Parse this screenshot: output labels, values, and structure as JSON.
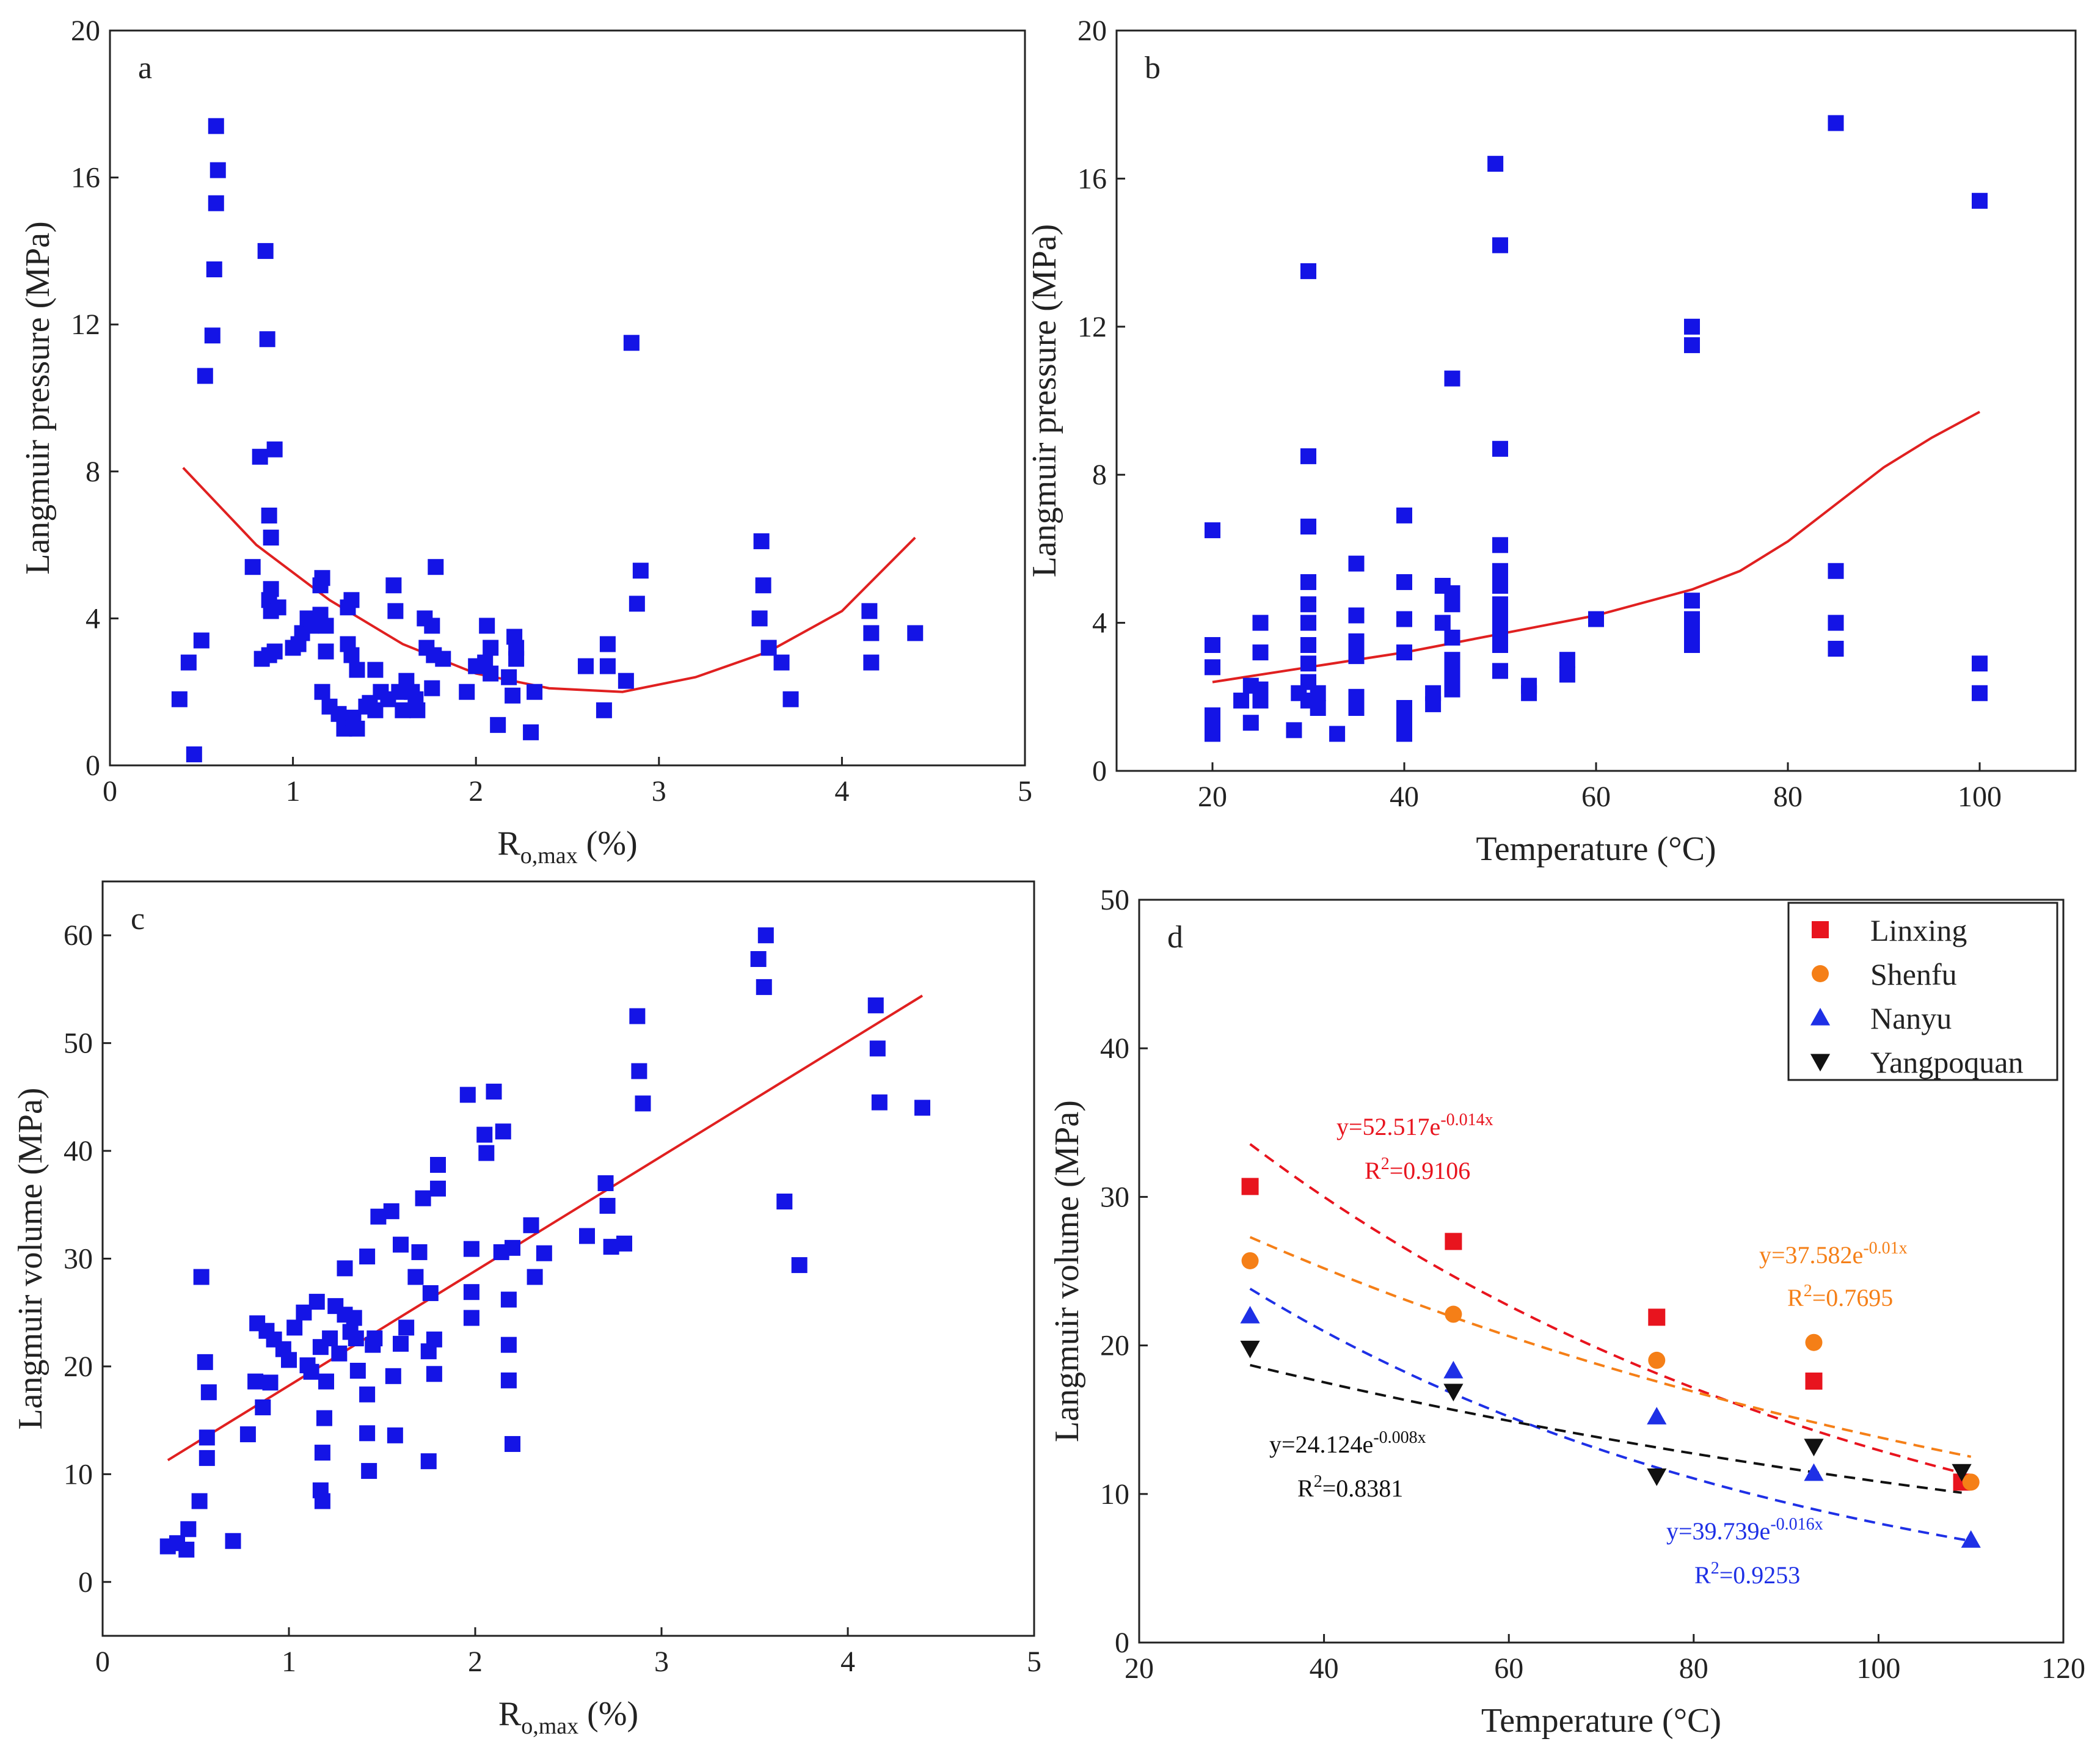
{
  "chart_data": [
    {
      "panel": "a",
      "type": "scatter",
      "xlabel_main": "R",
      "xlabel_sub": "o,max",
      "xlabel_unit": " (%)",
      "ylabel": "Langmuir pressure (MPa)",
      "xlim": [
        0,
        5
      ],
      "ylim": [
        0,
        20
      ],
      "xticks": [
        0,
        1,
        2,
        3,
        4,
        5
      ],
      "yticks": [
        0,
        4,
        8,
        12,
        16,
        20
      ],
      "marker": "square",
      "color": "#1414e6",
      "fit_color": "#e02020",
      "points": [
        [
          0.38,
          1.8
        ],
        [
          0.43,
          2.8
        ],
        [
          0.46,
          0.3
        ],
        [
          0.5,
          3.4
        ],
        [
          0.52,
          10.6
        ],
        [
          0.56,
          11.7
        ],
        [
          0.57,
          13.5
        ],
        [
          0.58,
          15.3
        ],
        [
          0.59,
          16.2
        ],
        [
          0.58,
          17.4
        ],
        [
          0.78,
          5.4
        ],
        [
          0.82,
          8.4
        ],
        [
          0.83,
          2.9
        ],
        [
          0.85,
          14
        ],
        [
          0.86,
          11.6
        ],
        [
          0.87,
          6.8
        ],
        [
          0.88,
          6.2
        ],
        [
          0.88,
          4.8
        ],
        [
          0.87,
          4.5
        ],
        [
          0.88,
          4.2
        ],
        [
          0.87,
          3
        ],
        [
          0.9,
          8.6
        ],
        [
          0.92,
          4.3
        ],
        [
          0.9,
          3.1
        ],
        [
          1,
          3.2
        ],
        [
          1.03,
          3.3
        ],
        [
          1.05,
          3.6
        ],
        [
          1.08,
          4
        ],
        [
          1.1,
          3.8
        ],
        [
          1.12,
          3.9
        ],
        [
          1.15,
          4.9
        ],
        [
          1.16,
          5.1
        ],
        [
          1.15,
          4.1
        ],
        [
          1.18,
          3.8
        ],
        [
          1.18,
          3.1
        ],
        [
          1.16,
          2
        ],
        [
          1.2,
          1.6
        ],
        [
          1.25,
          1.4
        ],
        [
          1.3,
          1.2
        ],
        [
          1.28,
          1
        ],
        [
          1.33,
          1.3
        ],
        [
          1.35,
          1
        ],
        [
          1.3,
          4.3
        ],
        [
          1.32,
          4.5
        ],
        [
          1.3,
          3.3
        ],
        [
          1.32,
          3
        ],
        [
          1.35,
          2.6
        ],
        [
          1.4,
          1.6
        ],
        [
          1.42,
          1.7
        ],
        [
          1.45,
          1.5
        ],
        [
          1.45,
          2.6
        ],
        [
          1.48,
          2
        ],
        [
          1.52,
          1.8
        ],
        [
          1.55,
          4.9
        ],
        [
          1.56,
          4.2
        ],
        [
          1.58,
          2
        ],
        [
          1.6,
          1.5
        ],
        [
          1.62,
          2.3
        ],
        [
          1.65,
          2
        ],
        [
          1.67,
          1.8
        ],
        [
          1.68,
          1.5
        ],
        [
          1.72,
          4
        ],
        [
          1.73,
          3.2
        ],
        [
          1.76,
          3.8
        ],
        [
          1.77,
          3
        ],
        [
          1.76,
          2.1
        ],
        [
          1.78,
          5.4
        ],
        [
          1.82,
          2.9
        ],
        [
          1.95,
          2
        ],
        [
          2,
          2.7
        ],
        [
          2.05,
          2.8
        ],
        [
          2.06,
          3.8
        ],
        [
          2.08,
          3.2
        ],
        [
          2.08,
          2.5
        ],
        [
          2.12,
          1.1
        ],
        [
          2.18,
          2.4
        ],
        [
          2.2,
          1.9
        ],
        [
          2.21,
          3.5
        ],
        [
          2.22,
          3.2
        ],
        [
          2.22,
          2.9
        ],
        [
          2.3,
          0.9
        ],
        [
          2.32,
          2
        ],
        [
          2.6,
          2.7
        ],
        [
          2.7,
          1.5
        ],
        [
          2.72,
          2.7
        ],
        [
          2.72,
          3.3
        ],
        [
          2.82,
          2.3
        ],
        [
          2.85,
          11.5
        ],
        [
          2.88,
          4.4
        ],
        [
          2.9,
          5.3
        ],
        [
          3.55,
          4
        ],
        [
          3.56,
          6.1
        ],
        [
          3.57,
          4.9
        ],
        [
          3.6,
          3.2
        ],
        [
          3.67,
          2.8
        ],
        [
          3.72,
          1.8
        ],
        [
          4.15,
          4.2
        ],
        [
          4.16,
          3.6
        ],
        [
          4.16,
          2.8
        ],
        [
          4.4,
          3.6
        ]
      ],
      "fit": [
        [
          0.4,
          8.1
        ],
        [
          0.8,
          6
        ],
        [
          1.2,
          4.5
        ],
        [
          1.6,
          3.3
        ],
        [
          2,
          2.5
        ],
        [
          2.4,
          2.1
        ],
        [
          2.8,
          2
        ],
        [
          3.2,
          2.4
        ],
        [
          3.6,
          3.1
        ],
        [
          4,
          4.2
        ],
        [
          4.4,
          6.2
        ]
      ]
    },
    {
      "panel": "b",
      "type": "scatter",
      "xlabel": "Temperature (°C)",
      "ylabel": "Langmuir pressure (MPa)",
      "xlim": [
        10,
        110
      ],
      "ylim": [
        0,
        20
      ],
      "xticks": [
        20,
        40,
        60,
        80,
        100
      ],
      "yticks": [
        0,
        4,
        8,
        12,
        16,
        20
      ],
      "marker": "square",
      "color": "#1414e6",
      "fit_color": "#e02020",
      "points": [
        [
          20,
          6.5
        ],
        [
          20,
          3.4
        ],
        [
          20,
          2.8
        ],
        [
          20,
          1.5
        ],
        [
          20,
          1.2
        ],
        [
          20,
          1
        ],
        [
          23,
          1.9
        ],
        [
          24,
          2.3
        ],
        [
          24,
          1.3
        ],
        [
          25,
          4
        ],
        [
          25,
          3.2
        ],
        [
          25,
          2.2
        ],
        [
          25,
          1.9
        ],
        [
          28.5,
          1.1
        ],
        [
          29,
          2.1
        ],
        [
          30,
          13.5
        ],
        [
          30,
          8.5
        ],
        [
          30,
          6.6
        ],
        [
          30,
          5.1
        ],
        [
          30,
          4.5
        ],
        [
          30,
          4
        ],
        [
          30,
          3.4
        ],
        [
          30,
          2.9
        ],
        [
          30,
          2.4
        ],
        [
          30,
          1.9
        ],
        [
          31,
          1.7
        ],
        [
          31,
          2.1
        ],
        [
          33,
          1
        ],
        [
          35,
          5.6
        ],
        [
          35,
          4.2
        ],
        [
          35,
          3.5
        ],
        [
          35,
          3.1
        ],
        [
          35,
          2
        ],
        [
          35,
          1.7
        ],
        [
          40,
          6.9
        ],
        [
          40,
          5.1
        ],
        [
          40,
          4.1
        ],
        [
          40,
          3.2
        ],
        [
          40,
          1.7
        ],
        [
          40,
          1.5
        ],
        [
          40,
          1.3
        ],
        [
          40,
          1
        ],
        [
          43,
          1.8
        ],
        [
          43,
          2.1
        ],
        [
          44,
          4
        ],
        [
          44,
          5
        ],
        [
          45,
          10.6
        ],
        [
          45,
          4.8
        ],
        [
          45,
          4.5
        ],
        [
          45,
          3.6
        ],
        [
          45,
          3
        ],
        [
          45,
          2.7
        ],
        [
          45,
          2.5
        ],
        [
          45,
          2.2
        ],
        [
          49.5,
          16.4
        ],
        [
          50,
          14.2
        ],
        [
          50,
          8.7
        ],
        [
          50,
          6.1
        ],
        [
          50,
          5.4
        ],
        [
          50,
          5
        ],
        [
          50,
          4.5
        ],
        [
          50,
          4.1
        ],
        [
          50,
          3.7
        ],
        [
          50,
          3.4
        ],
        [
          50,
          2.7
        ],
        [
          53,
          2.1
        ],
        [
          53,
          2.3
        ],
        [
          57,
          3
        ],
        [
          57,
          2.6
        ],
        [
          60,
          4.1
        ],
        [
          70,
          12
        ],
        [
          70,
          11.5
        ],
        [
          70,
          4.6
        ],
        [
          70,
          4.1
        ],
        [
          70,
          3.7
        ],
        [
          70,
          3.4
        ],
        [
          85,
          17.5
        ],
        [
          85,
          5.4
        ],
        [
          85,
          4
        ],
        [
          85,
          3.3
        ],
        [
          100,
          15.4
        ],
        [
          100,
          2.9
        ],
        [
          100,
          2.1
        ]
      ],
      "fit": [
        [
          20,
          2.4
        ],
        [
          30,
          2.8
        ],
        [
          40,
          3.2
        ],
        [
          50,
          3.7
        ],
        [
          60,
          4.2
        ],
        [
          70,
          4.9
        ],
        [
          75,
          5.4
        ],
        [
          80,
          6.2
        ],
        [
          85,
          7.2
        ],
        [
          90,
          8.2
        ],
        [
          95,
          9
        ],
        [
          100,
          9.7
        ]
      ]
    },
    {
      "panel": "c",
      "type": "scatter",
      "xlabel_main": "R",
      "xlabel_sub": "o,max",
      "xlabel_unit": " (%)",
      "ylabel": "Langmuir volume (MPa)",
      "xlim": [
        0,
        5
      ],
      "ylim": [
        -5,
        65
      ],
      "xticks": [
        0,
        1,
        2,
        3,
        4,
        5
      ],
      "yticks": [
        0,
        10,
        20,
        30,
        40,
        50,
        60
      ],
      "marker": "square",
      "color": "#1414e6",
      "fit_color": "#e02020",
      "points": [
        [
          0.35,
          3.3
        ],
        [
          0.4,
          3.6
        ],
        [
          0.45,
          3
        ],
        [
          0.46,
          4.9
        ],
        [
          0.52,
          7.5
        ],
        [
          0.53,
          28.3
        ],
        [
          0.55,
          20.4
        ],
        [
          0.57,
          17.6
        ],
        [
          0.56,
          13.4
        ],
        [
          0.56,
          11.5
        ],
        [
          0.7,
          3.8
        ],
        [
          0.78,
          13.7
        ],
        [
          0.82,
          18.6
        ],
        [
          0.83,
          24
        ],
        [
          0.86,
          16.2
        ],
        [
          0.88,
          23.3
        ],
        [
          0.9,
          18.5
        ],
        [
          0.92,
          22.5
        ],
        [
          0.97,
          21.6
        ],
        [
          1,
          20.6
        ],
        [
          1.03,
          23.6
        ],
        [
          1.08,
          25
        ],
        [
          1.1,
          20.1
        ],
        [
          1.12,
          19.5
        ],
        [
          1.15,
          26
        ],
        [
          1.17,
          21.8
        ],
        [
          1.17,
          8.5
        ],
        [
          1.18,
          7.5
        ],
        [
          1.18,
          12
        ],
        [
          1.19,
          15.2
        ],
        [
          1.2,
          18.6
        ],
        [
          1.22,
          22.6
        ],
        [
          1.25,
          25.6
        ],
        [
          1.27,
          21.2
        ],
        [
          1.3,
          24.8
        ],
        [
          1.3,
          29.1
        ],
        [
          1.33,
          23.2
        ],
        [
          1.35,
          24.5
        ],
        [
          1.36,
          22.6
        ],
        [
          1.37,
          19.6
        ],
        [
          1.42,
          17.4
        ],
        [
          1.42,
          13.8
        ],
        [
          1.43,
          10.3
        ],
        [
          1.42,
          30.2
        ],
        [
          1.45,
          22
        ],
        [
          1.46,
          22.6
        ],
        [
          1.48,
          33.9
        ],
        [
          1.55,
          34.4
        ],
        [
          1.56,
          19.1
        ],
        [
          1.57,
          13.6
        ],
        [
          1.6,
          31.3
        ],
        [
          1.6,
          22.1
        ],
        [
          1.63,
          23.6
        ],
        [
          1.68,
          28.3
        ],
        [
          1.7,
          30.6
        ],
        [
          1.72,
          35.6
        ],
        [
          1.75,
          21.4
        ],
        [
          1.76,
          26.8
        ],
        [
          1.75,
          11.2
        ],
        [
          1.78,
          22.5
        ],
        [
          1.78,
          19.3
        ],
        [
          1.8,
          36.5
        ],
        [
          1.8,
          38.7
        ],
        [
          1.96,
          45.2
        ],
        [
          1.98,
          30.9
        ],
        [
          1.98,
          26.9
        ],
        [
          1.98,
          24.5
        ],
        [
          2.05,
          41.5
        ],
        [
          2.06,
          39.8
        ],
        [
          2.1,
          45.5
        ],
        [
          2.14,
          30.6
        ],
        [
          2.15,
          41.8
        ],
        [
          2.18,
          26.2
        ],
        [
          2.18,
          22
        ],
        [
          2.18,
          18.7
        ],
        [
          2.2,
          12.8
        ],
        [
          2.2,
          31
        ],
        [
          2.3,
          33.1
        ],
        [
          2.32,
          28.3
        ],
        [
          2.37,
          30.5
        ],
        [
          2.6,
          32.1
        ],
        [
          2.7,
          37
        ],
        [
          2.71,
          34.9
        ],
        [
          2.73,
          31.1
        ],
        [
          2.8,
          31.4
        ],
        [
          2.87,
          52.5
        ],
        [
          2.88,
          47.4
        ],
        [
          2.9,
          44.4
        ],
        [
          3.52,
          57.8
        ],
        [
          3.55,
          55.2
        ],
        [
          3.56,
          60
        ],
        [
          3.66,
          35.3
        ],
        [
          3.74,
          29.4
        ],
        [
          4.15,
          53.5
        ],
        [
          4.16,
          49.5
        ],
        [
          4.17,
          44.5
        ],
        [
          4.4,
          44
        ]
      ],
      "fit": [
        [
          0.35,
          11.3
        ],
        [
          4.4,
          54.4
        ]
      ]
    },
    {
      "panel": "d",
      "type": "scatter",
      "xlabel": "Temperature (°C)",
      "ylabel": "Langmuir volume (MPa)",
      "xlim": [
        20,
        120
      ],
      "ylim": [
        0,
        50
      ],
      "xticks": [
        20,
        40,
        60,
        80,
        100,
        120
      ],
      "yticks": [
        0,
        10,
        20,
        30,
        40,
        50
      ],
      "series": [
        {
          "name": "Linxing",
          "marker": "square",
          "color": "#e8141e",
          "x": [
            32,
            54,
            76,
            93,
            109
          ],
          "y": [
            30.7,
            27,
            21.9,
            17.6,
            10.8
          ],
          "a": 52.517,
          "b": 0.014
        },
        {
          "name": "Shenfu",
          "marker": "circle",
          "color": "#f57f17",
          "x": [
            32,
            54,
            76,
            93,
            110
          ],
          "y": [
            25.7,
            22.1,
            19,
            20.2,
            10.8
          ],
          "a": 37.582,
          "b": 0.01
        },
        {
          "name": "Nanyu",
          "marker": "triangle-up",
          "color": "#1e30e6",
          "x": [
            32,
            54,
            76,
            93,
            110
          ],
          "y": [
            22,
            18.3,
            15.2,
            11.4,
            6.9
          ],
          "a": 39.739,
          "b": 0.016
        },
        {
          "name": "Yangpoquan",
          "marker": "triangle-down",
          "color": "#111111",
          "x": [
            32,
            54,
            76,
            93,
            109
          ],
          "y": [
            19.8,
            16.9,
            11.2,
            13.2,
            11.5
          ],
          "a": 24.124,
          "b": 0.008
        }
      ],
      "annotations": [
        {
          "series": "Linxing",
          "eq_base": "y=52.517e",
          "eq_exp": "-0.014x",
          "r2_value": "=0.9106"
        },
        {
          "series": "Shenfu",
          "eq_base": "y=37.582e",
          "eq_exp": "-0.01x",
          "r2_value": "=0.7695"
        },
        {
          "series": "Yangpoquan",
          "eq_base": "y=24.124e",
          "eq_exp": "-0.008x",
          "r2_value": "=0.8381"
        },
        {
          "series": "Nanyu",
          "eq_base": "y=39.739e",
          "eq_exp": "-0.016x",
          "r2_value": "=0.9253"
        }
      ]
    }
  ]
}
